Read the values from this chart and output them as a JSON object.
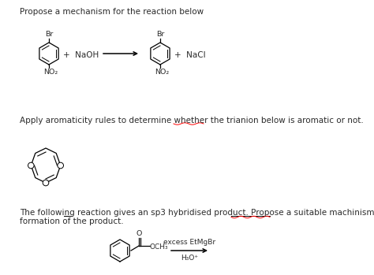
{
  "bg_color": "#ffffff",
  "text_color": "#2a2a2a",
  "title1": "Propose a mechanism for the reaction below",
  "title2": "Apply aromaticity rules to determine whether the trianion below is aromatic or not.",
  "title3_part1": "The following reaction gives an sp3 hybridised product. Propose a suitable machinism for the",
  "title3_part2": "formation of the product.",
  "reagent_naoh": "+ NaOH",
  "reagent_nacl": "+ NaCl",
  "reagent3": "excess EtMgBr",
  "reagent4": "H₃O⁺",
  "no2": "NO₂",
  "och3": "OCH₃",
  "br": "Br",
  "o_label": "O",
  "fs_main": 7.5,
  "fs_small": 6.8,
  "fs_chem": 6.5
}
